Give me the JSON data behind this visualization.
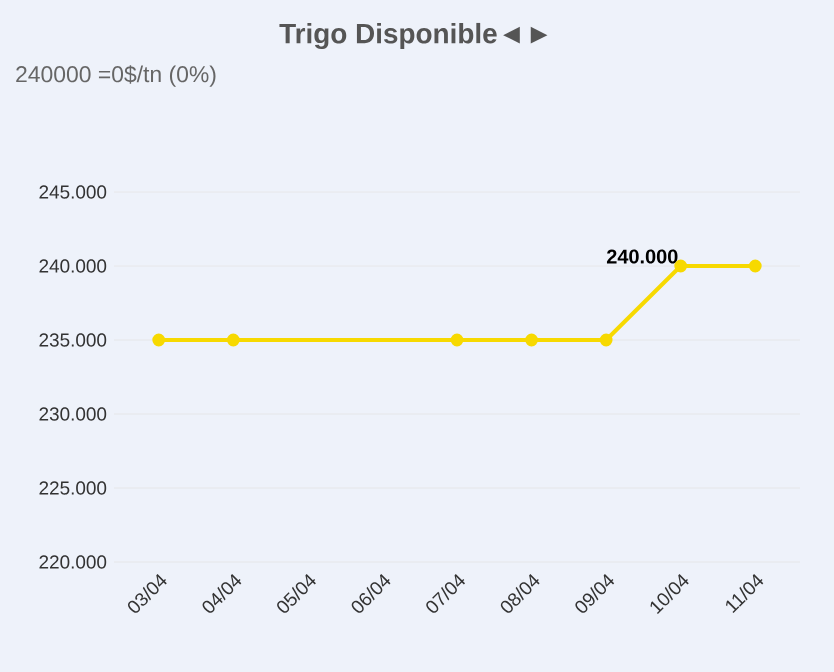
{
  "chart_data": {
    "type": "line",
    "title": "Trigo Disponible◄►",
    "subtitle": "240000 =0$/tn (0%)",
    "categories": [
      "03/04",
      "04/04",
      "05/04",
      "06/04",
      "07/04",
      "08/04",
      "09/04",
      "10/04",
      "11/04"
    ],
    "series": [
      {
        "color": "#f7d900",
        "values": [
          235000,
          235000,
          null,
          null,
          235000,
          235000,
          235000,
          240000,
          240000
        ]
      }
    ],
    "ylim": [
      220000,
      245000
    ],
    "yticks": [
      {
        "value": 220000,
        "label": "220.000"
      },
      {
        "value": 225000,
        "label": "225.000"
      },
      {
        "value": 230000,
        "label": "230.000"
      },
      {
        "value": 235000,
        "label": "235.000"
      },
      {
        "value": 240000,
        "label": "240.000"
      },
      {
        "value": 245000,
        "label": "245.000"
      }
    ],
    "annotations": [
      {
        "text": "240.000",
        "x": "10/04",
        "y": 240000
      }
    ],
    "grid": "y",
    "marker": "circle",
    "line_style": "solid"
  }
}
